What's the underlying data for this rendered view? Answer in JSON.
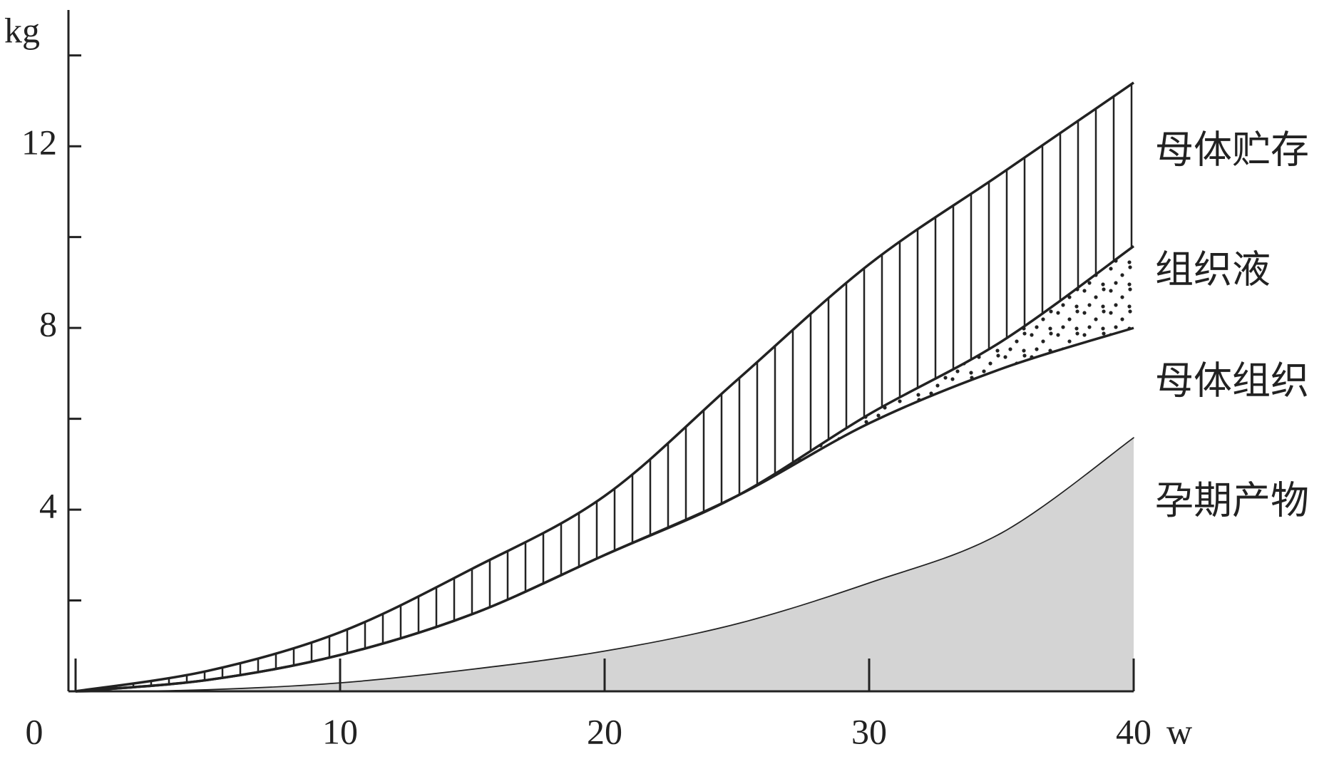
{
  "chart_data": {
    "type": "stacked-area",
    "x_label": "w",
    "y_label": "kg",
    "x": [
      0,
      5,
      10,
      15,
      20,
      25,
      30,
      35,
      40
    ],
    "series": [
      {
        "name": "孕期产物",
        "color": "#d4d4d4",
        "fill": "solid",
        "values": [
          0,
          0.05,
          0.2,
          0.5,
          0.9,
          1.5,
          2.4,
          3.5,
          5.6
        ]
      },
      {
        "name": "母体组织",
        "color": "#ffffff",
        "fill": "solid",
        "values": [
          0,
          0.2,
          0.6,
          1.2,
          2.1,
          2.8,
          3.5,
          3.6,
          2.4
        ]
      },
      {
        "name": "组织液",
        "color": "#222222",
        "fill": "dots",
        "values": [
          0,
          0,
          0,
          0,
          0,
          0,
          0.2,
          0.6,
          1.8
        ]
      },
      {
        "name": "母体贮存",
        "color": "#222222",
        "fill": "vertical-lines",
        "values": [
          0,
          0.2,
          0.5,
          1.0,
          1.3,
          2.55,
          3.3,
          3.7,
          3.6
        ]
      }
    ],
    "xlim": [
      0,
      40
    ],
    "xticks": [
      0,
      10,
      20,
      30,
      40
    ],
    "ylim": [
      0,
      15
    ],
    "yticks": [
      4,
      8,
      12
    ],
    "yminor": [
      2,
      6,
      10,
      14
    ]
  }
}
